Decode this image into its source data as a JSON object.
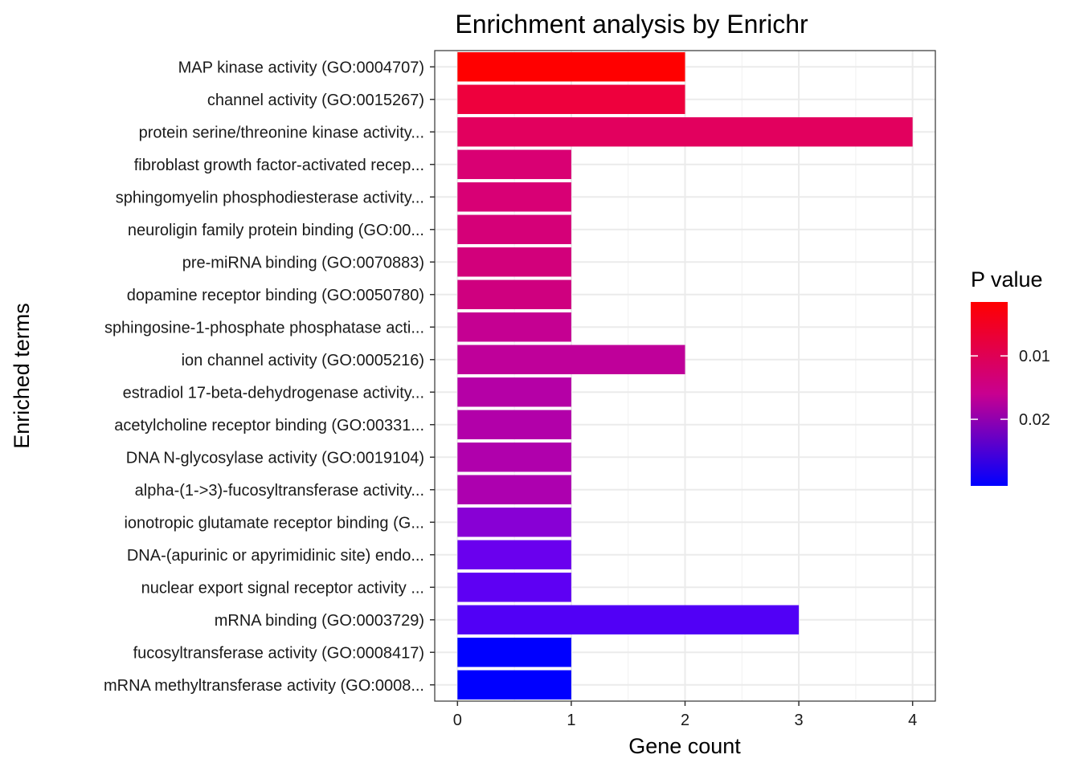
{
  "chart_data": {
    "type": "bar",
    "orientation": "horizontal",
    "title": "Enrichment analysis by Enrichr",
    "xlabel": "Gene count",
    "ylabel": "Enriched terms",
    "xlim": [
      -0.2,
      4.2
    ],
    "xticks": [
      0,
      1,
      2,
      3,
      4
    ],
    "grid": true,
    "categories": [
      "MAP kinase activity (GO:0004707)",
      "channel activity (GO:0015267)",
      "protein serine/threonine kinase activity...",
      "fibroblast growth factor-activated recep...",
      "sphingomyelin phosphodiesterase activity...",
      "neuroligin family protein binding (GO:00...",
      "pre-miRNA binding (GO:0070883)",
      "dopamine receptor binding (GO:0050780)",
      "sphingosine-1-phosphate phosphatase acti...",
      "ion channel activity (GO:0005216)",
      "estradiol 17-beta-dehydrogenase activity...",
      "acetylcholine receptor binding (GO:00331...",
      "DNA N-glycosylase activity (GO:0019104)",
      "alpha-(1->3)-fucosyltransferase activity...",
      "ionotropic glutamate receptor binding (G...",
      "DNA-(apurinic or apyrimidinic site) endo...",
      "nuclear export signal receptor activity ...",
      "mRNA binding (GO:0003729)",
      "fucosyltransferase activity (GO:0008417)",
      "mRNA methyltransferase activity (GO:0008..."
    ],
    "values": [
      2,
      2,
      4,
      1,
      1,
      1,
      1,
      1,
      1,
      2,
      1,
      1,
      1,
      1,
      1,
      1,
      1,
      3,
      1,
      1
    ],
    "fill_colors": [
      "#FF0000",
      "#EE003D",
      "#E2005E",
      "#D90073",
      "#D80075",
      "#D50078",
      "#D2007B",
      "#CF007F",
      "#C50092",
      "#BF009A",
      "#B500A6",
      "#B200A9",
      "#B000AC",
      "#AD00AF",
      "#8800D5",
      "#6A00EE",
      "#5E00F3",
      "#5100F6",
      "#0000FF",
      "#0000FF"
    ],
    "legend": {
      "title": "P value",
      "placement": "right",
      "labels": [
        "0.01",
        "0.02"
      ],
      "label_values": [
        0.01,
        0.02
      ],
      "range": [
        0.0015,
        0.0305
      ],
      "color_low_value": "#FF0000",
      "color_high_value": "#0000FF"
    }
  }
}
